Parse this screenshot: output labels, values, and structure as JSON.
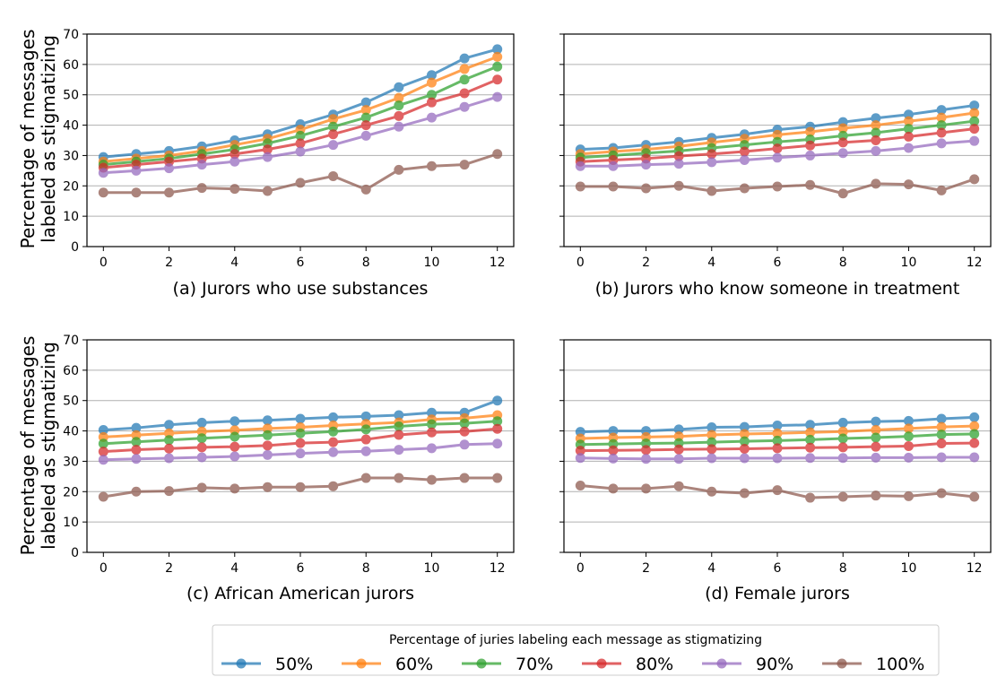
{
  "figure": {
    "ylabel_line1": "Percentage of messages",
    "ylabel_line2": "labeled as stigmatizing",
    "legend_title": "Percentage of juries labeling each message as stigmatizing"
  },
  "colors": {
    "50%": "#1f77b4",
    "60%": "#ff7f0e",
    "70%": "#2ca02c",
    "80%": "#d62728",
    "90%": "#9467bd",
    "100%": "#8c564b"
  },
  "chart_data": [
    {
      "type": "line",
      "xlabel": "(a) Jurors who use substances",
      "x": [
        0,
        1,
        2,
        3,
        4,
        5,
        6,
        7,
        8,
        9,
        10,
        11,
        12
      ],
      "xticks": [
        0,
        2,
        4,
        6,
        8,
        10,
        12
      ],
      "ylim": [
        0,
        70
      ],
      "yticks": [
        0,
        10,
        20,
        30,
        40,
        50,
        60,
        70
      ],
      "grid": "y",
      "series": [
        {
          "name": "50%",
          "values": [
            29.5,
            30.5,
            31.5,
            33,
            35,
            37,
            40.3,
            43.5,
            47.5,
            52.5,
            56.5,
            62,
            65
          ]
        },
        {
          "name": "60%",
          "values": [
            28,
            29,
            30,
            31.5,
            33.5,
            35.5,
            38.5,
            42,
            45,
            49,
            54,
            58.5,
            62.5
          ]
        },
        {
          "name": "70%",
          "values": [
            27,
            28,
            29,
            30.5,
            32,
            34,
            36.5,
            39.5,
            42.5,
            46.5,
            50,
            55,
            59.3
          ]
        },
        {
          "name": "80%",
          "values": [
            26,
            27,
            28,
            29,
            30.5,
            32,
            34,
            37,
            40,
            43,
            47.5,
            50.5,
            55
          ]
        },
        {
          "name": "90%",
          "values": [
            24.3,
            25,
            25.8,
            27,
            28,
            29.5,
            31.3,
            33.5,
            36.5,
            39.5,
            42.5,
            46,
            49.3
          ]
        },
        {
          "name": "100%",
          "values": [
            17.8,
            17.8,
            17.8,
            19.3,
            19,
            18.3,
            21,
            23.2,
            18.8,
            25.3,
            26.5,
            27,
            30.5
          ]
        }
      ]
    },
    {
      "type": "line",
      "xlabel": "(b) Jurors who know someone in treatment",
      "x": [
        0,
        1,
        2,
        3,
        4,
        5,
        6,
        7,
        8,
        9,
        10,
        11,
        12
      ],
      "xticks": [
        0,
        2,
        4,
        6,
        8,
        10,
        12
      ],
      "ylim": [
        0,
        70
      ],
      "yticks": [
        0,
        10,
        20,
        30,
        40,
        50,
        60,
        70
      ],
      "grid": "y",
      "series": [
        {
          "name": "50%",
          "values": [
            32,
            32.5,
            33.5,
            34.5,
            35.8,
            37,
            38.5,
            39.5,
            41,
            42.3,
            43.5,
            45,
            46.5
          ]
        },
        {
          "name": "60%",
          "values": [
            30.5,
            31.3,
            32,
            33,
            34.3,
            35.5,
            36.8,
            37.8,
            39,
            40,
            41.3,
            42.5,
            44
          ]
        },
        {
          "name": "70%",
          "values": [
            29.3,
            30,
            30.8,
            31.5,
            32.5,
            33.5,
            34.5,
            35.3,
            36.5,
            37.5,
            38.8,
            40,
            41.3
          ]
        },
        {
          "name": "80%",
          "values": [
            28,
            28.5,
            29,
            29.8,
            30.5,
            31.3,
            32.3,
            33.3,
            34.3,
            35,
            36.2,
            37.5,
            38.8
          ]
        },
        {
          "name": "90%",
          "values": [
            26.5,
            26.5,
            27,
            27.3,
            27.8,
            28.5,
            29.3,
            30,
            30.8,
            31.5,
            32.5,
            34,
            34.8
          ]
        },
        {
          "name": "100%",
          "values": [
            19.8,
            19.8,
            19.2,
            20,
            18.3,
            19.2,
            19.8,
            20.3,
            17.5,
            20.7,
            20.5,
            18.5,
            22.2
          ]
        }
      ]
    },
    {
      "type": "line",
      "xlabel": "(c) African American jurors",
      "x": [
        0,
        1,
        2,
        3,
        4,
        5,
        6,
        7,
        8,
        9,
        10,
        11,
        12
      ],
      "xticks": [
        0,
        2,
        4,
        6,
        8,
        10,
        12
      ],
      "ylim": [
        0,
        70
      ],
      "yticks": [
        0,
        10,
        20,
        30,
        40,
        50,
        60,
        70
      ],
      "grid": "y",
      "series": [
        {
          "name": "50%",
          "values": [
            40.3,
            41,
            42,
            42.7,
            43.2,
            43.5,
            44,
            44.5,
            44.8,
            45.2,
            46,
            46,
            50
          ]
        },
        {
          "name": "60%",
          "values": [
            38,
            38.6,
            39.2,
            39.8,
            40.2,
            40.8,
            41.2,
            41.8,
            42.3,
            42.8,
            43.8,
            44.2,
            45.2
          ]
        },
        {
          "name": "70%",
          "values": [
            35.8,
            36.4,
            37,
            37.6,
            38.1,
            38.6,
            39.2,
            39.8,
            40.5,
            41.5,
            42.2,
            42.5,
            43.2
          ]
        },
        {
          "name": "80%",
          "values": [
            33.2,
            33.8,
            34.2,
            34.6,
            34.8,
            35.2,
            36,
            36.3,
            37.2,
            38.7,
            39.5,
            39.8,
            40.7
          ]
        },
        {
          "name": "90%",
          "values": [
            30.5,
            30.8,
            31,
            31.3,
            31.6,
            32.1,
            32.6,
            33,
            33.3,
            33.8,
            34.3,
            35.5,
            35.8
          ]
        },
        {
          "name": "100%",
          "values": [
            18.3,
            20,
            20.2,
            21.3,
            21,
            21.5,
            21.5,
            21.8,
            24.5,
            24.5,
            23.9,
            24.5,
            24.5
          ]
        }
      ]
    },
    {
      "type": "line",
      "xlabel": "(d) Female jurors",
      "x": [
        0,
        1,
        2,
        3,
        4,
        5,
        6,
        7,
        8,
        9,
        10,
        11,
        12
      ],
      "xticks": [
        0,
        2,
        4,
        6,
        8,
        10,
        12
      ],
      "ylim": [
        0,
        70
      ],
      "yticks": [
        0,
        10,
        20,
        30,
        40,
        50,
        60,
        70
      ],
      "grid": "y",
      "series": [
        {
          "name": "50%",
          "values": [
            39.7,
            40,
            40,
            40.5,
            41.2,
            41.3,
            41.8,
            42,
            42.7,
            43.1,
            43.3,
            44,
            44.5
          ]
        },
        {
          "name": "60%",
          "values": [
            37.5,
            37.8,
            38,
            38.2,
            38.7,
            39,
            39.2,
            39.5,
            39.8,
            40.3,
            40.8,
            41.3,
            41.6
          ]
        },
        {
          "name": "70%",
          "values": [
            35.5,
            35.7,
            35.9,
            36,
            36.3,
            36.6,
            36.8,
            37.1,
            37.5,
            37.8,
            38.2,
            38.8,
            39
          ]
        },
        {
          "name": "80%",
          "values": [
            33.5,
            33.6,
            33.7,
            33.9,
            34,
            34.1,
            34.3,
            34.5,
            34.6,
            34.8,
            35,
            35.9,
            36
          ]
        },
        {
          "name": "90%",
          "values": [
            31.1,
            30.9,
            30.8,
            30.8,
            31,
            31,
            31,
            31.1,
            31.1,
            31.2,
            31.2,
            31.3,
            31.3
          ]
        },
        {
          "name": "100%",
          "values": [
            22,
            21,
            21,
            21.8,
            20,
            19.5,
            20.5,
            18,
            18.3,
            18.7,
            18.5,
            19.5,
            18.3
          ]
        }
      ]
    }
  ]
}
